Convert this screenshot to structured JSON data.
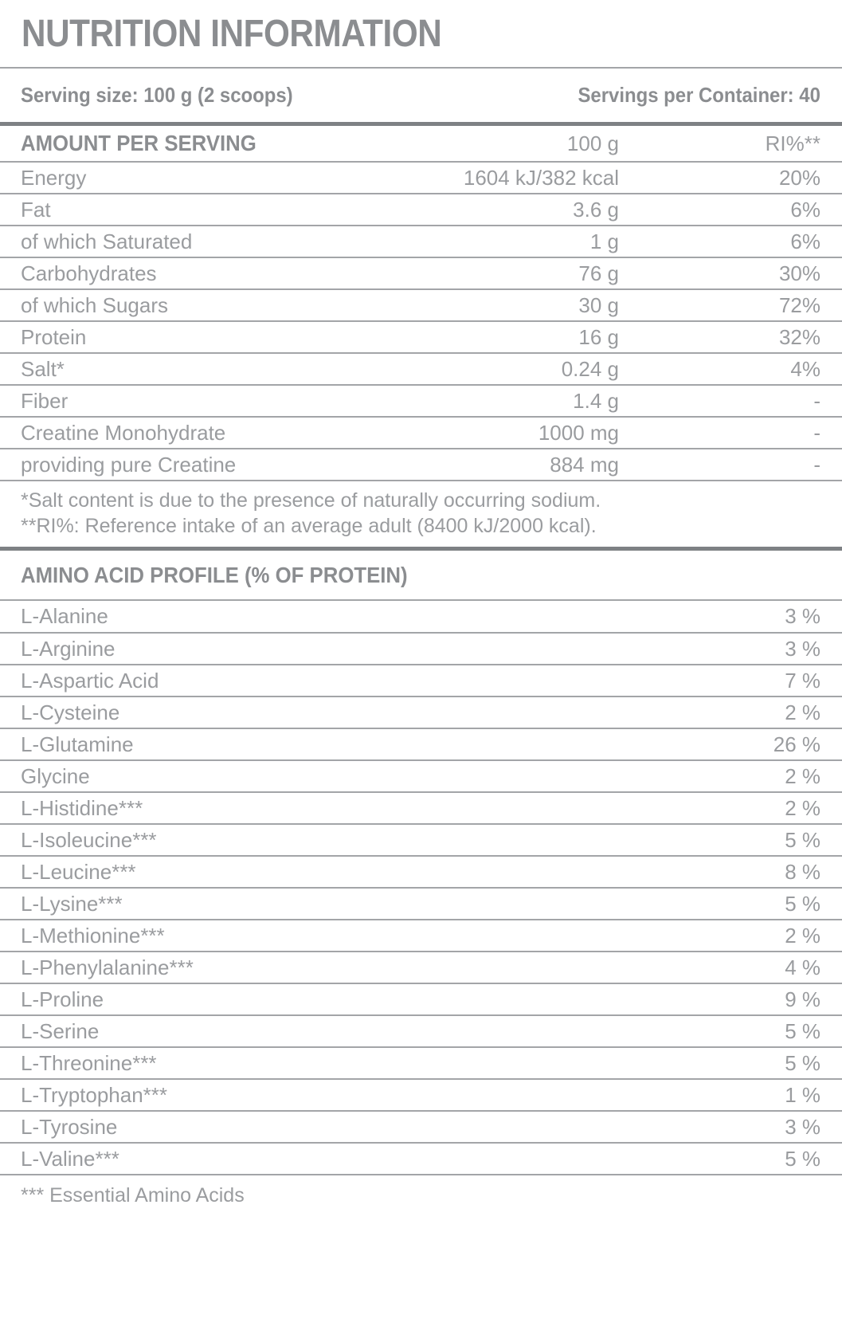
{
  "title": "NUTRITION INFORMATION",
  "serving": {
    "size": "Serving size: 100 g (2 scoops)",
    "per_container": "Servings per Container: 40"
  },
  "main_table": {
    "header": {
      "label": "AMOUNT PER SERVING",
      "amount": "100 g",
      "ri": "RI%**"
    },
    "rows": [
      {
        "label": "Energy",
        "amount": "1604 kJ/382 kcal",
        "ri": "20%"
      },
      {
        "label": "Fat",
        "amount": "3.6 g",
        "ri": "6%"
      },
      {
        "label": "of which Saturated",
        "amount": "1 g",
        "ri": "6%"
      },
      {
        "label": "Carbohydrates",
        "amount": "76 g",
        "ri": "30%"
      },
      {
        "label": "of which Sugars",
        "amount": "30 g",
        "ri": "72%"
      },
      {
        "label": "Protein",
        "amount": "16 g",
        "ri": "32%"
      },
      {
        "label": "Salt*",
        "amount": "0.24 g",
        "ri": "4%"
      },
      {
        "label": "Fiber",
        "amount": "1.4 g",
        "ri": "-"
      },
      {
        "label": "Creatine Monohydrate",
        "amount": "1000 mg",
        "ri": "-"
      },
      {
        "label": "providing pure Creatine",
        "amount": "884 mg",
        "ri": "-"
      }
    ],
    "footnotes": [
      "*Salt content is due to the presence of naturally occurring sodium.",
      "**RI%: Reference intake of an average adult (8400 kJ/2000 kcal)."
    ]
  },
  "amino_section": {
    "title": "AMINO ACID PROFILE (% OF PROTEIN)",
    "rows": [
      {
        "label": "L-Alanine",
        "value": "3 %"
      },
      {
        "label": "L-Arginine",
        "value": "3 %"
      },
      {
        "label": "L-Aspartic Acid",
        "value": "7 %"
      },
      {
        "label": "L-Cysteine",
        "value": "2 %"
      },
      {
        "label": "L-Glutamine",
        "value": "26 %"
      },
      {
        "label": "Glycine",
        "value": "2 %"
      },
      {
        "label": "L-Histidine***",
        "value": "2 %"
      },
      {
        "label": "L-Isoleucine***",
        "value": "5 %"
      },
      {
        "label": "L-Leucine***",
        "value": "8 %"
      },
      {
        "label": "L-Lysine***",
        "value": "5 %"
      },
      {
        "label": "L-Methionine***",
        "value": "2 %"
      },
      {
        "label": "L-Phenylalanine***",
        "value": "4 %"
      },
      {
        "label": "L-Proline",
        "value": "9 %"
      },
      {
        "label": "L-Serine",
        "value": "5 %"
      },
      {
        "label": "L-Threonine***",
        "value": "5 %"
      },
      {
        "label": "L-Tryptophan***",
        "value": "1 %"
      },
      {
        "label": "L-Tyrosine",
        "value": "3 %"
      },
      {
        "label": "L-Valine***",
        "value": "5 %"
      }
    ],
    "footnote": "*** Essential Amino Acids"
  },
  "colors": {
    "heading_text": "#8b8d90",
    "body_text": "#9a9c9f",
    "thin_line": "#a3a5a8",
    "thick_line": "#7e8184",
    "background": "#ffffff"
  }
}
